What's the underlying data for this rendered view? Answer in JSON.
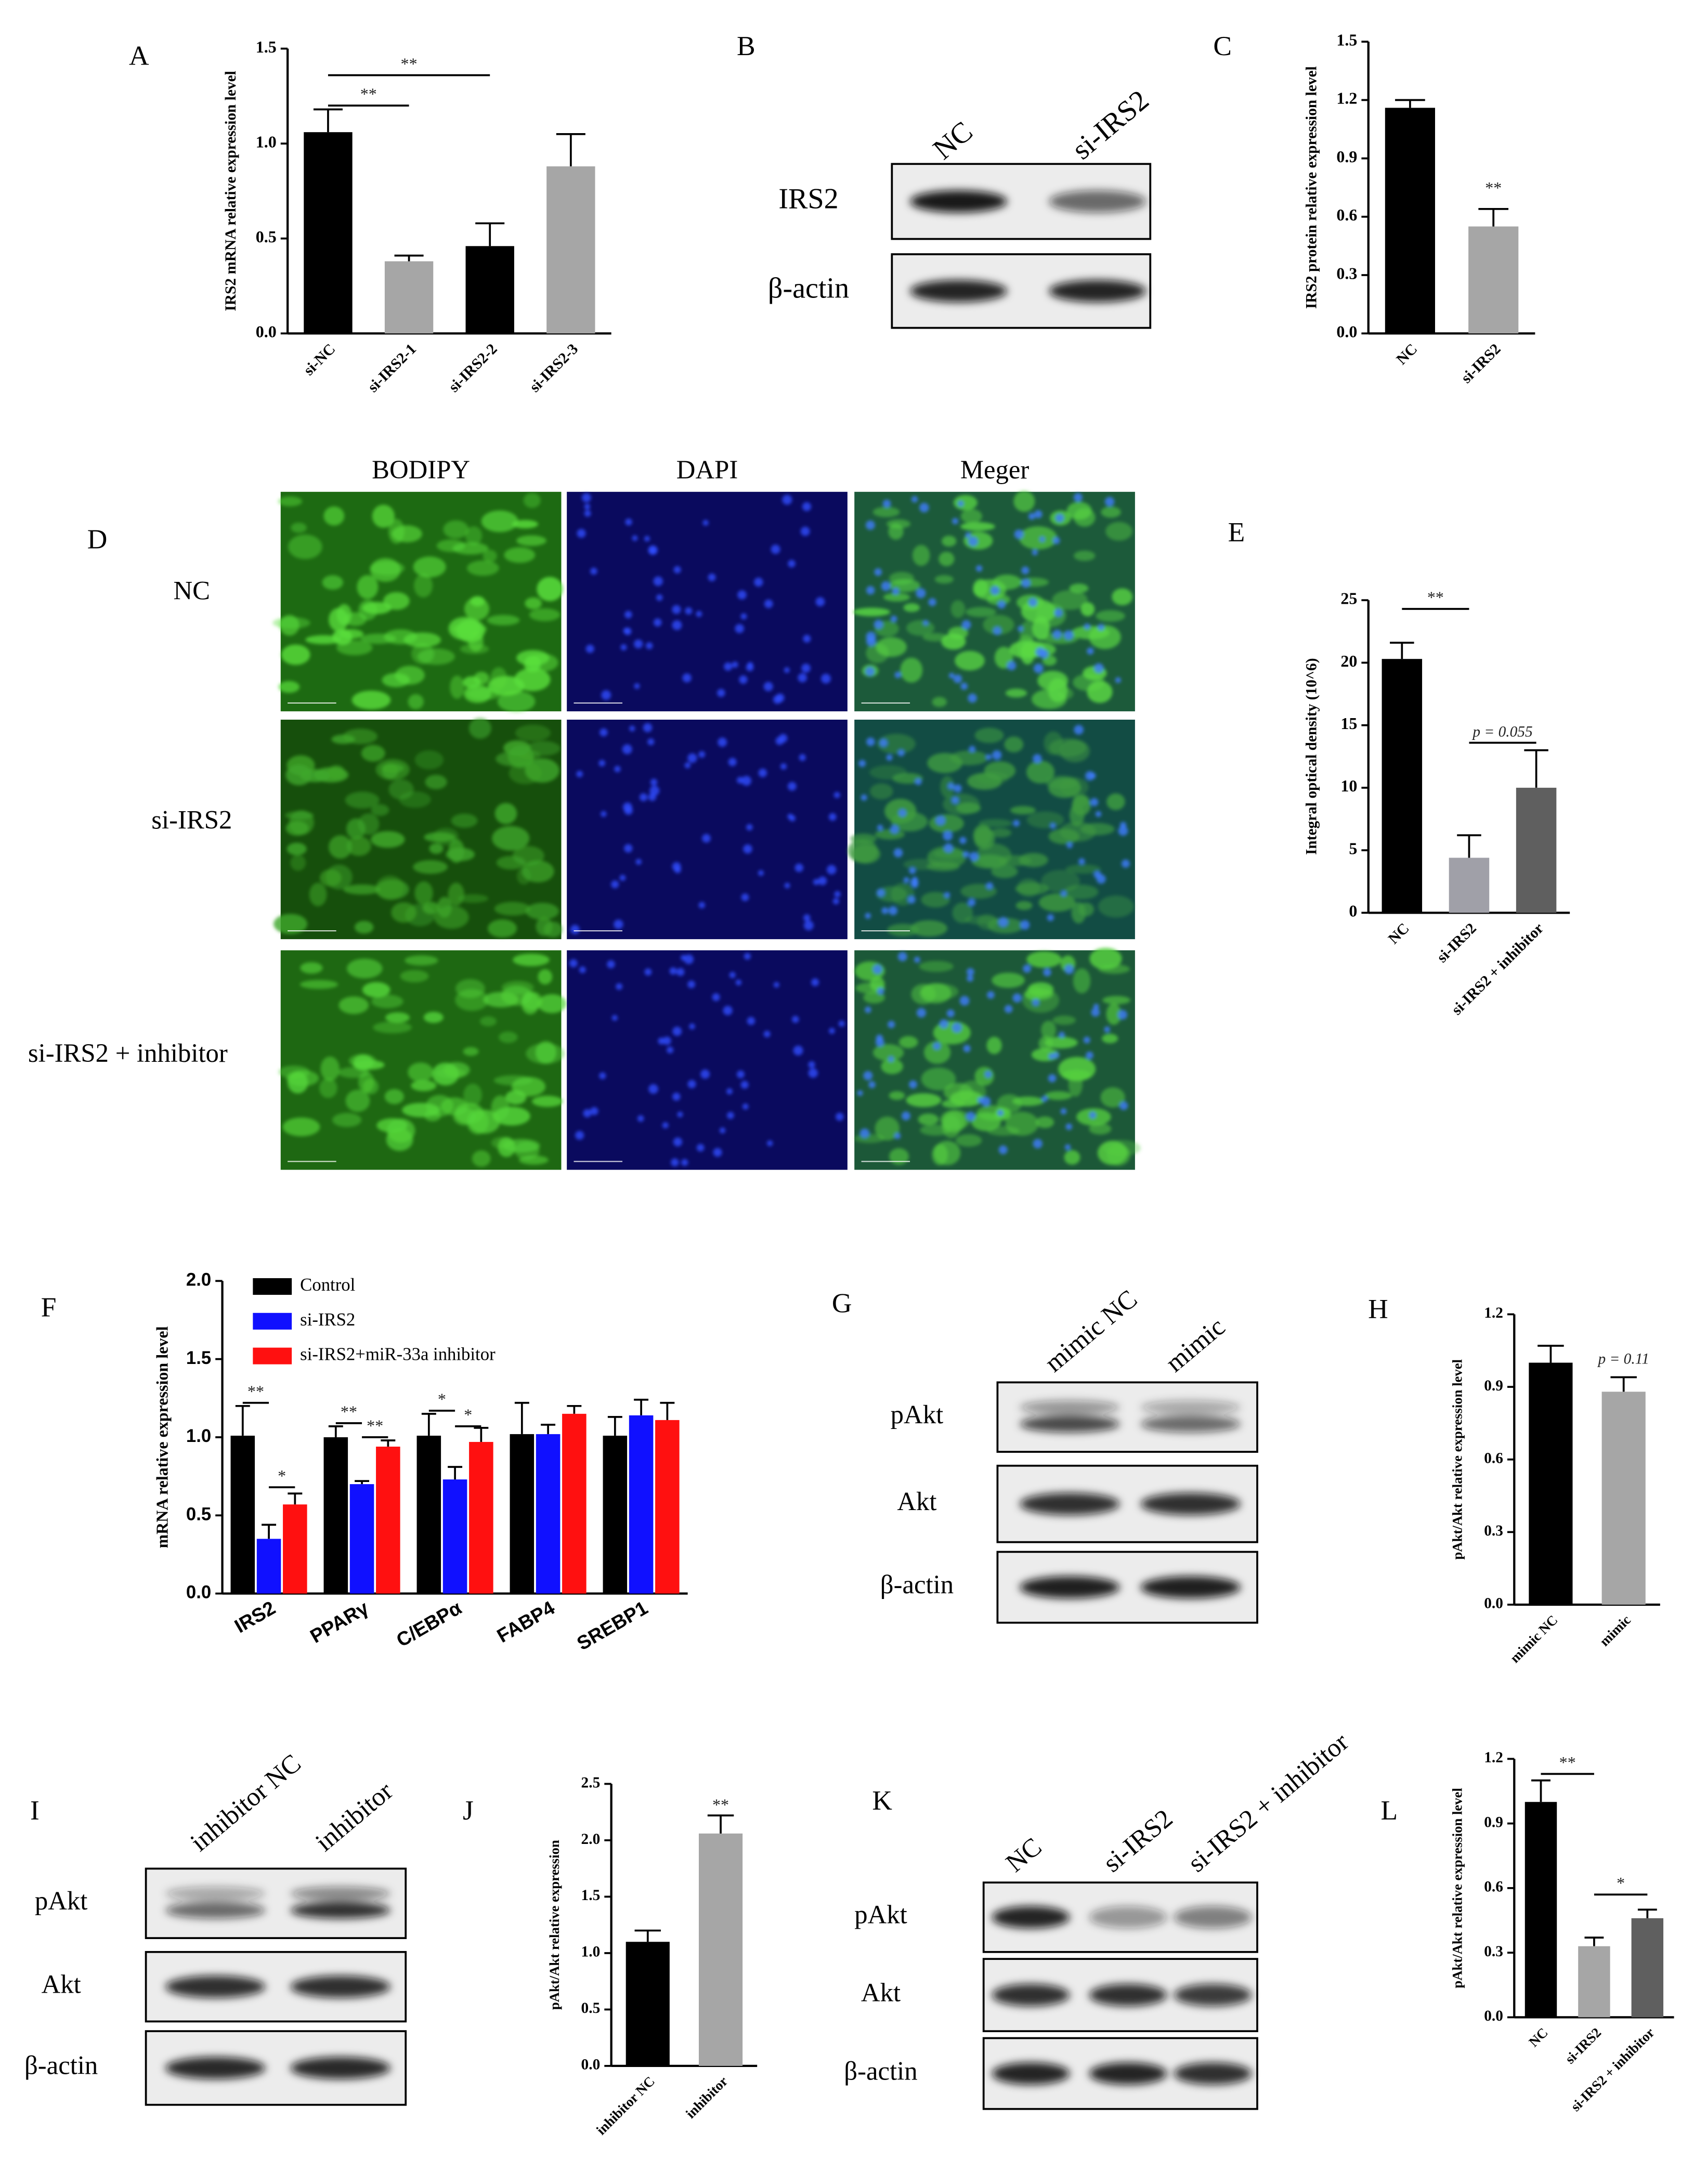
{
  "chart_data": [
    {
      "panel": "A",
      "type": "bar",
      "ylabel": "IRS2 mRNA relative expression level",
      "categories": [
        "si-NC",
        "si-IRS2-1",
        "si-IRS2-2",
        "si-IRS2-3"
      ],
      "values": [
        1.06,
        0.38,
        0.46,
        0.88
      ],
      "errors": [
        0.12,
        0.03,
        0.12,
        0.17
      ],
      "colors": [
        "#000000",
        "#a6a6a6",
        "#000000",
        "#a6a6a6"
      ],
      "ylim": [
        0,
        1.5
      ],
      "yticks": [
        {
          "value": 0,
          "label": "0.0"
        },
        0.5,
        {
          "value": 1,
          "label": "1.0"
        },
        1.5
      ],
      "annotations": [
        "**",
        "**"
      ]
    },
    {
      "panel": "C",
      "type": "bar",
      "ylabel": "IRS2 protein relative expression level",
      "categories": [
        "NC",
        "si-IRS2"
      ],
      "values": [
        1.16,
        0.55
      ],
      "errors": [
        0.04,
        0.09
      ],
      "colors": [
        "#000000",
        "#a6a6a6"
      ],
      "ylim": [
        0,
        1.5
      ],
      "yticks": [
        {
          "value": 0,
          "label": "0.0"
        },
        0.3,
        0.6,
        0.9,
        1.2,
        1.5
      ],
      "annotations": [
        "**"
      ]
    },
    {
      "panel": "E",
      "type": "bar",
      "ylabel": "Integral optical density (10^6)",
      "categories": [
        "NC",
        "si-IRS2",
        "si-IRS2 + inhibitor"
      ],
      "values": [
        20.3,
        4.4,
        10.0
      ],
      "errors": [
        1.3,
        1.8,
        3.0
      ],
      "colors": [
        "#000000",
        "#a0a0a8",
        "#5f5f5f"
      ],
      "ylim": [
        0,
        25
      ],
      "yticks": [
        0,
        5,
        10,
        15,
        20,
        25
      ],
      "annotations": [
        "**",
        "p = 0.055"
      ]
    },
    {
      "panel": "F",
      "type": "grouped_bar",
      "ylabel": "mRNA relative expression level",
      "categories": [
        "IRS2",
        "PPARγ",
        "C/EBPα",
        "FABP4",
        "SREBP1"
      ],
      "series": [
        {
          "name": "Control",
          "color": "#000000",
          "values": [
            1.01,
            1.0,
            1.01,
            1.02,
            1.01
          ],
          "errors": [
            0.19,
            0.07,
            0.14,
            0.2,
            0.12
          ]
        },
        {
          "name": "si-IRS2",
          "color": "#1010ff",
          "values": [
            0.35,
            0.7,
            0.73,
            1.02,
            1.14
          ],
          "errors": [
            0.09,
            0.02,
            0.08,
            0.06,
            0.1
          ]
        },
        {
          "name": "si-IRS2+miR-33a inhibitor",
          "color": "#ff1010",
          "values": [
            0.57,
            0.94,
            0.97,
            1.15,
            1.11
          ],
          "errors": [
            0.07,
            0.04,
            0.09,
            0.05,
            0.11
          ]
        }
      ],
      "ylim": [
        0,
        2
      ],
      "yticks": [
        {
          "value": 0,
          "label": "0.0"
        },
        0.5,
        {
          "value": 1,
          "label": "1.0"
        },
        1.5,
        {
          "value": 2,
          "label": "2.0"
        }
      ],
      "legend": "top-left",
      "annotations": [
        "**",
        "*",
        "**",
        "**",
        "*",
        "*"
      ]
    },
    {
      "panel": "H",
      "type": "bar",
      "ylabel": "pAkt/Akt relative expression level",
      "categories": [
        "mimic NC",
        "mimic"
      ],
      "values": [
        1.0,
        0.88
      ],
      "errors": [
        0.07,
        0.06
      ],
      "colors": [
        "#000000",
        "#a6a6a6"
      ],
      "ylim": [
        0,
        1.2
      ],
      "yticks": [
        {
          "value": 0,
          "label": "0.0"
        },
        0.3,
        0.6,
        0.9,
        1.2
      ],
      "annotations": [
        "p = 0.11"
      ]
    },
    {
      "panel": "J",
      "type": "bar",
      "ylabel": "pAkt/Akt relative expression",
      "categories": [
        "inhibitor NC",
        "inhibitor"
      ],
      "values": [
        1.1,
        2.06
      ],
      "errors": [
        0.1,
        0.16
      ],
      "colors": [
        "#000000",
        "#a6a6a6"
      ],
      "ylim": [
        0,
        2.5
      ],
      "yticks": [
        {
          "value": 0,
          "label": "0.0"
        },
        0.5,
        {
          "value": 1,
          "label": "1.0"
        },
        1.5,
        {
          "value": 2,
          "label": "2.0"
        },
        2.5
      ],
      "annotations": [
        "**"
      ]
    },
    {
      "panel": "L",
      "type": "bar",
      "ylabel": "pAkt/Akt relative expression level",
      "categories": [
        "NC",
        "si-IRS2",
        "si-IRS2 + inhibitor"
      ],
      "values": [
        1.0,
        0.33,
        0.46
      ],
      "errors": [
        0.1,
        0.04,
        0.04
      ],
      "colors": [
        "#000000",
        "#a6a6a6",
        "#5f5f5f"
      ],
      "ylim": [
        0,
        1.2
      ],
      "yticks": [
        {
          "value": 0,
          "label": "0.0"
        },
        0.3,
        0.6,
        0.9,
        1.2
      ],
      "annotations": [
        "**",
        "*"
      ]
    }
  ],
  "blots": [
    {
      "panel": "B",
      "columns": [
        "NC",
        "si-IRS2"
      ],
      "rows": [
        "IRS2",
        "β-actin"
      ]
    },
    {
      "panel": "G",
      "columns": [
        "mimic NC",
        "mimic"
      ],
      "rows": [
        "pAkt",
        "Akt",
        "β-actin"
      ]
    },
    {
      "panel": "I",
      "columns": [
        "inhibitor NC",
        "inhibitor"
      ],
      "rows": [
        "pAkt",
        "Akt",
        "β-actin"
      ]
    },
    {
      "panel": "K",
      "columns": [
        "NC",
        "si-IRS2",
        "si-IRS2 + inhibitor"
      ],
      "rows": [
        "pAkt",
        "Akt",
        "β-actin"
      ]
    }
  ],
  "microscopy": {
    "panel": "D",
    "columns": [
      "BODIPY",
      "DAPI",
      "Meger"
    ],
    "rows": [
      "NC",
      "si-IRS2",
      "si-IRS2 + inhibitor"
    ]
  }
}
